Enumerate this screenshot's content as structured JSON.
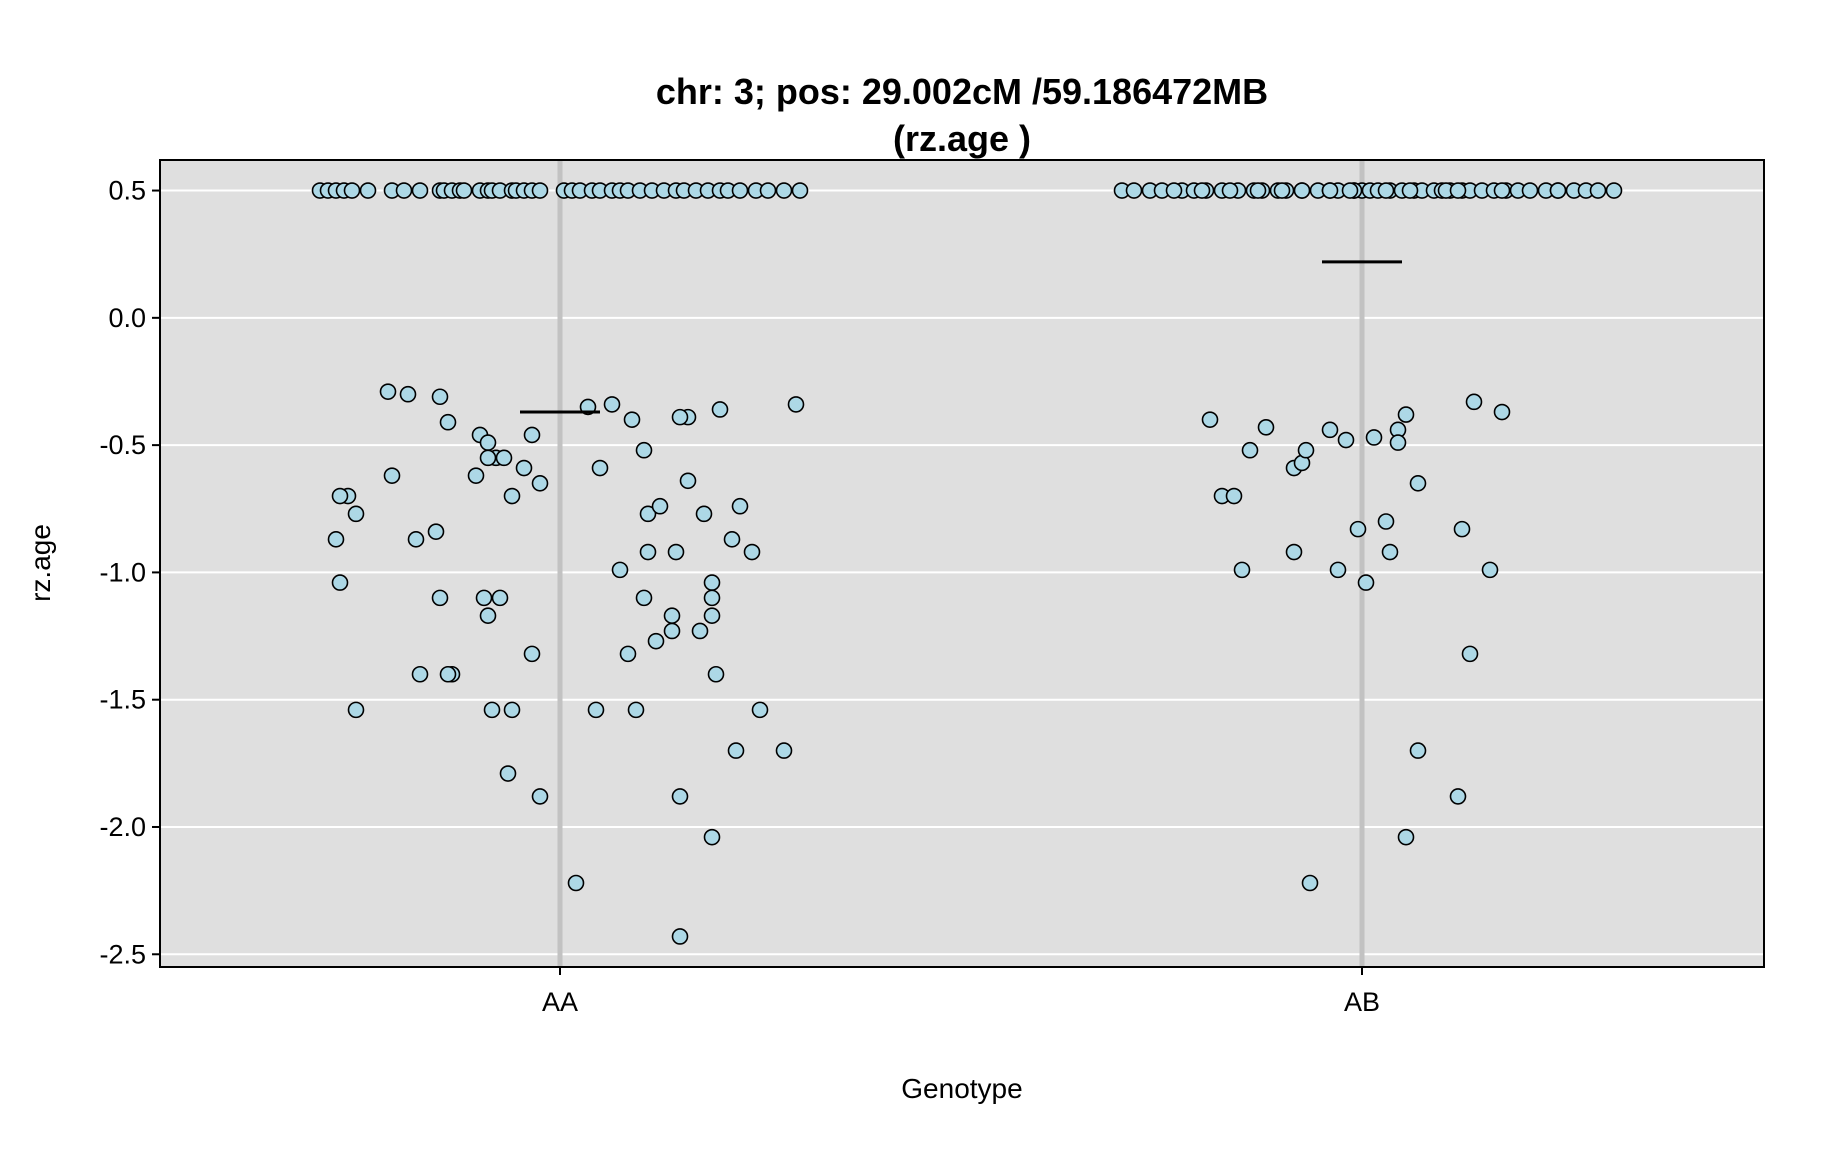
{
  "chart_data": {
    "type": "scatter",
    "title": "chr: 3; pos: 29.002cM /59.186472MB",
    "subtitle": "(rz.age )",
    "xlabel": "Genotype",
    "ylabel": "rz.age",
    "categories": [
      "AA",
      "AB"
    ],
    "ylim": [
      -2.55,
      0.62
    ],
    "yticks": [
      0.5,
      0.0,
      -0.5,
      -1.0,
      -1.5,
      -2.0,
      -2.5
    ],
    "ytick_labels": [
      "0.5",
      "0.0",
      "-0.5",
      "-1.0",
      "-1.5",
      "-2.0",
      "-2.5"
    ],
    "grid": true,
    "colors": {
      "panel_bg": "#dfdfdf",
      "gridline": "#ffffff",
      "category_line": "#c2c2c2",
      "point_fill": "#add8e6",
      "point_stroke": "#000000",
      "mean_line": "#000000"
    },
    "groups": [
      {
        "category": "AA",
        "mean": -0.37,
        "jitter": [
          -0.6,
          -0.58,
          -0.56,
          -0.54,
          -0.52,
          -0.48,
          -0.42,
          -0.39,
          -0.35,
          -0.3,
          -0.29,
          -0.27,
          -0.25,
          -0.24,
          -0.2,
          -0.18,
          -0.17,
          -0.15,
          -0.12,
          -0.11,
          -0.09,
          -0.07,
          -0.05,
          0.01,
          0.03,
          0.05,
          0.08,
          0.1,
          0.13,
          0.15,
          0.17,
          0.2,
          0.23,
          0.26,
          0.29,
          0.31,
          0.34,
          0.37,
          0.4,
          0.42,
          0.45,
          0.49,
          0.52,
          0.56,
          0.6,
          -0.43,
          -0.38,
          -0.3,
          -0.28,
          -0.2,
          -0.18,
          -0.16,
          -0.09,
          -0.05,
          0.07,
          0.32,
          0.4,
          -0.53,
          -0.42,
          -0.55,
          -0.56,
          -0.55,
          -0.51,
          -0.36,
          -0.3,
          -0.27,
          -0.28,
          -0.18,
          -0.19,
          -0.17,
          -0.13,
          -0.12,
          -0.07,
          -0.05,
          0.04,
          0.09,
          0.15,
          0.24,
          0.28,
          0.32,
          0.36,
          0.43,
          0.48,
          0.5,
          0.56,
          0.59
        ],
        "values": [
          0.5,
          0.5,
          0.5,
          0.5,
          0.5,
          0.5,
          0.5,
          0.5,
          0.5,
          0.5,
          0.5,
          0.5,
          0.5,
          0.5,
          0.5,
          0.5,
          0.5,
          0.5,
          0.5,
          0.5,
          0.5,
          0.5,
          0.5,
          0.5,
          0.5,
          0.5,
          0.5,
          0.5,
          0.5,
          0.5,
          0.5,
          0.5,
          0.5,
          0.5,
          0.5,
          0.5,
          0.5,
          0.5,
          0.5,
          0.5,
          0.5,
          0.5,
          0.5,
          0.5,
          0.5,
          -0.29,
          -0.3,
          -0.31,
          -0.41,
          -0.46,
          -0.49,
          -0.55,
          -0.59,
          -0.65,
          -0.35,
          -0.39,
          -0.36,
          -0.7,
          -0.62,
          -0.7,
          -0.87,
          -1.04,
          -0.77,
          -0.87,
          -1.1,
          -1.4,
          -1.4,
          -1.17,
          -1.1,
          -1.54,
          -1.79,
          -1.54,
          -1.32,
          -1.88,
          -2.22,
          -1.54,
          -0.99,
          -1.27,
          -1.17,
          -0.64,
          -0.77,
          -0.87,
          -0.92,
          -1.54,
          -1.7,
          -0.34
        ],
        "extra": [
          {
            "jx": -0.51,
            "y": -1.54
          },
          {
            "jx": -0.35,
            "y": -1.4
          },
          {
            "jx": -0.31,
            "y": -0.84
          },
          {
            "jx": -0.21,
            "y": -0.62
          },
          {
            "jx": -0.18,
            "y": -0.55
          },
          {
            "jx": -0.14,
            "y": -0.55
          },
          {
            "jx": -0.12,
            "y": -0.7
          },
          {
            "jx": 0.1,
            "y": -0.59
          },
          {
            "jx": 0.13,
            "y": -0.34
          },
          {
            "jx": 0.18,
            "y": -0.4
          },
          {
            "jx": 0.21,
            "y": -0.52
          },
          {
            "jx": 0.22,
            "y": -0.77
          },
          {
            "jx": 0.22,
            "y": -0.92
          },
          {
            "jx": 0.21,
            "y": -1.1
          },
          {
            "jx": 0.17,
            "y": -1.32
          },
          {
            "jx": 0.19,
            "y": -1.54
          },
          {
            "jx": 0.25,
            "y": -0.74
          },
          {
            "jx": 0.28,
            "y": -1.23
          },
          {
            "jx": 0.29,
            "y": -0.92
          },
          {
            "jx": 0.3,
            "y": -1.88
          },
          {
            "jx": 0.3,
            "y": -2.43
          },
          {
            "jx": 0.35,
            "y": -1.23
          },
          {
            "jx": 0.38,
            "y": -1.04
          },
          {
            "jx": 0.38,
            "y": -1.1
          },
          {
            "jx": 0.38,
            "y": -1.17
          },
          {
            "jx": 0.38,
            "y": -2.04
          },
          {
            "jx": 0.39,
            "y": -1.4
          },
          {
            "jx": 0.44,
            "y": -1.7
          },
          {
            "jx": 0.45,
            "y": -0.74
          },
          {
            "jx": -0.15,
            "y": -1.1
          },
          {
            "jx": -0.07,
            "y": -0.46
          },
          {
            "jx": 0.3,
            "y": -0.39
          }
        ]
      },
      {
        "category": "AB",
        "mean": 0.22,
        "jitter": [
          -0.6,
          -0.57,
          -0.53,
          -0.5,
          -0.45,
          -0.42,
          -0.39,
          -0.35,
          -0.31,
          -0.27,
          -0.25,
          -0.21,
          -0.19,
          -0.15,
          -0.11,
          -0.08,
          -0.06,
          -0.02,
          0.0,
          0.02,
          0.04,
          0.07,
          0.1,
          0.13,
          0.15,
          0.18,
          0.2,
          0.22,
          0.25,
          0.27,
          0.3,
          0.33,
          0.36,
          0.39,
          0.42,
          0.46,
          0.49,
          0.53,
          0.56,
          0.59,
          0.63,
          -0.47,
          -0.33,
          -0.15,
          -0.02,
          0.06,
          0.21,
          -0.4,
          -0.26,
          -0.2,
          -0.08,
          -0.03,
          0.12,
          0.24,
          0.35,
          0.49
        ],
        "values": [
          0.5,
          0.5,
          0.5,
          0.5,
          0.5,
          0.5,
          0.5,
          0.5,
          0.5,
          0.5,
          0.5,
          0.5,
          0.5,
          0.5,
          0.5,
          0.5,
          0.5,
          0.5,
          0.5,
          0.5,
          0.5,
          0.5,
          0.5,
          0.5,
          0.5,
          0.5,
          0.5,
          0.5,
          0.5,
          0.5,
          0.5,
          0.5,
          0.5,
          0.5,
          0.5,
          0.5,
          0.5,
          0.5,
          0.5,
          0.5,
          0.5,
          0.5,
          0.5,
          0.5,
          0.5,
          0.5,
          0.5,
          0.5,
          0.5,
          0.5,
          0.5,
          0.5,
          0.5,
          0.5,
          0.5,
          0.5
        ],
        "extra": [
          {
            "jx": -0.38,
            "y": -0.4
          },
          {
            "jx": -0.35,
            "y": -0.7
          },
          {
            "jx": -0.32,
            "y": -0.7
          },
          {
            "jx": -0.3,
            "y": -0.99
          },
          {
            "jx": -0.28,
            "y": -0.52
          },
          {
            "jx": -0.24,
            "y": -0.43
          },
          {
            "jx": -0.17,
            "y": -0.59
          },
          {
            "jx": -0.17,
            "y": -0.92
          },
          {
            "jx": -0.15,
            "y": -0.57
          },
          {
            "jx": -0.14,
            "y": -0.52
          },
          {
            "jx": -0.13,
            "y": -2.22
          },
          {
            "jx": -0.08,
            "y": -0.44
          },
          {
            "jx": -0.06,
            "y": -0.99
          },
          {
            "jx": -0.04,
            "y": -0.48
          },
          {
            "jx": -0.01,
            "y": -0.83
          },
          {
            "jx": 0.01,
            "y": -1.04
          },
          {
            "jx": 0.03,
            "y": -0.47
          },
          {
            "jx": 0.06,
            "y": -0.8
          },
          {
            "jx": 0.07,
            "y": -0.92
          },
          {
            "jx": 0.09,
            "y": -0.44
          },
          {
            "jx": 0.09,
            "y": -0.49
          },
          {
            "jx": 0.11,
            "y": -0.38
          },
          {
            "jx": 0.11,
            "y": -2.04
          },
          {
            "jx": 0.14,
            "y": -0.65
          },
          {
            "jx": 0.14,
            "y": -1.7
          },
          {
            "jx": 0.24,
            "y": -1.88
          },
          {
            "jx": 0.25,
            "y": -0.83
          },
          {
            "jx": 0.27,
            "y": -1.32
          },
          {
            "jx": 0.28,
            "y": -0.33
          },
          {
            "jx": 0.32,
            "y": -0.99
          },
          {
            "jx": 0.35,
            "y": -0.37
          }
        ]
      }
    ]
  }
}
